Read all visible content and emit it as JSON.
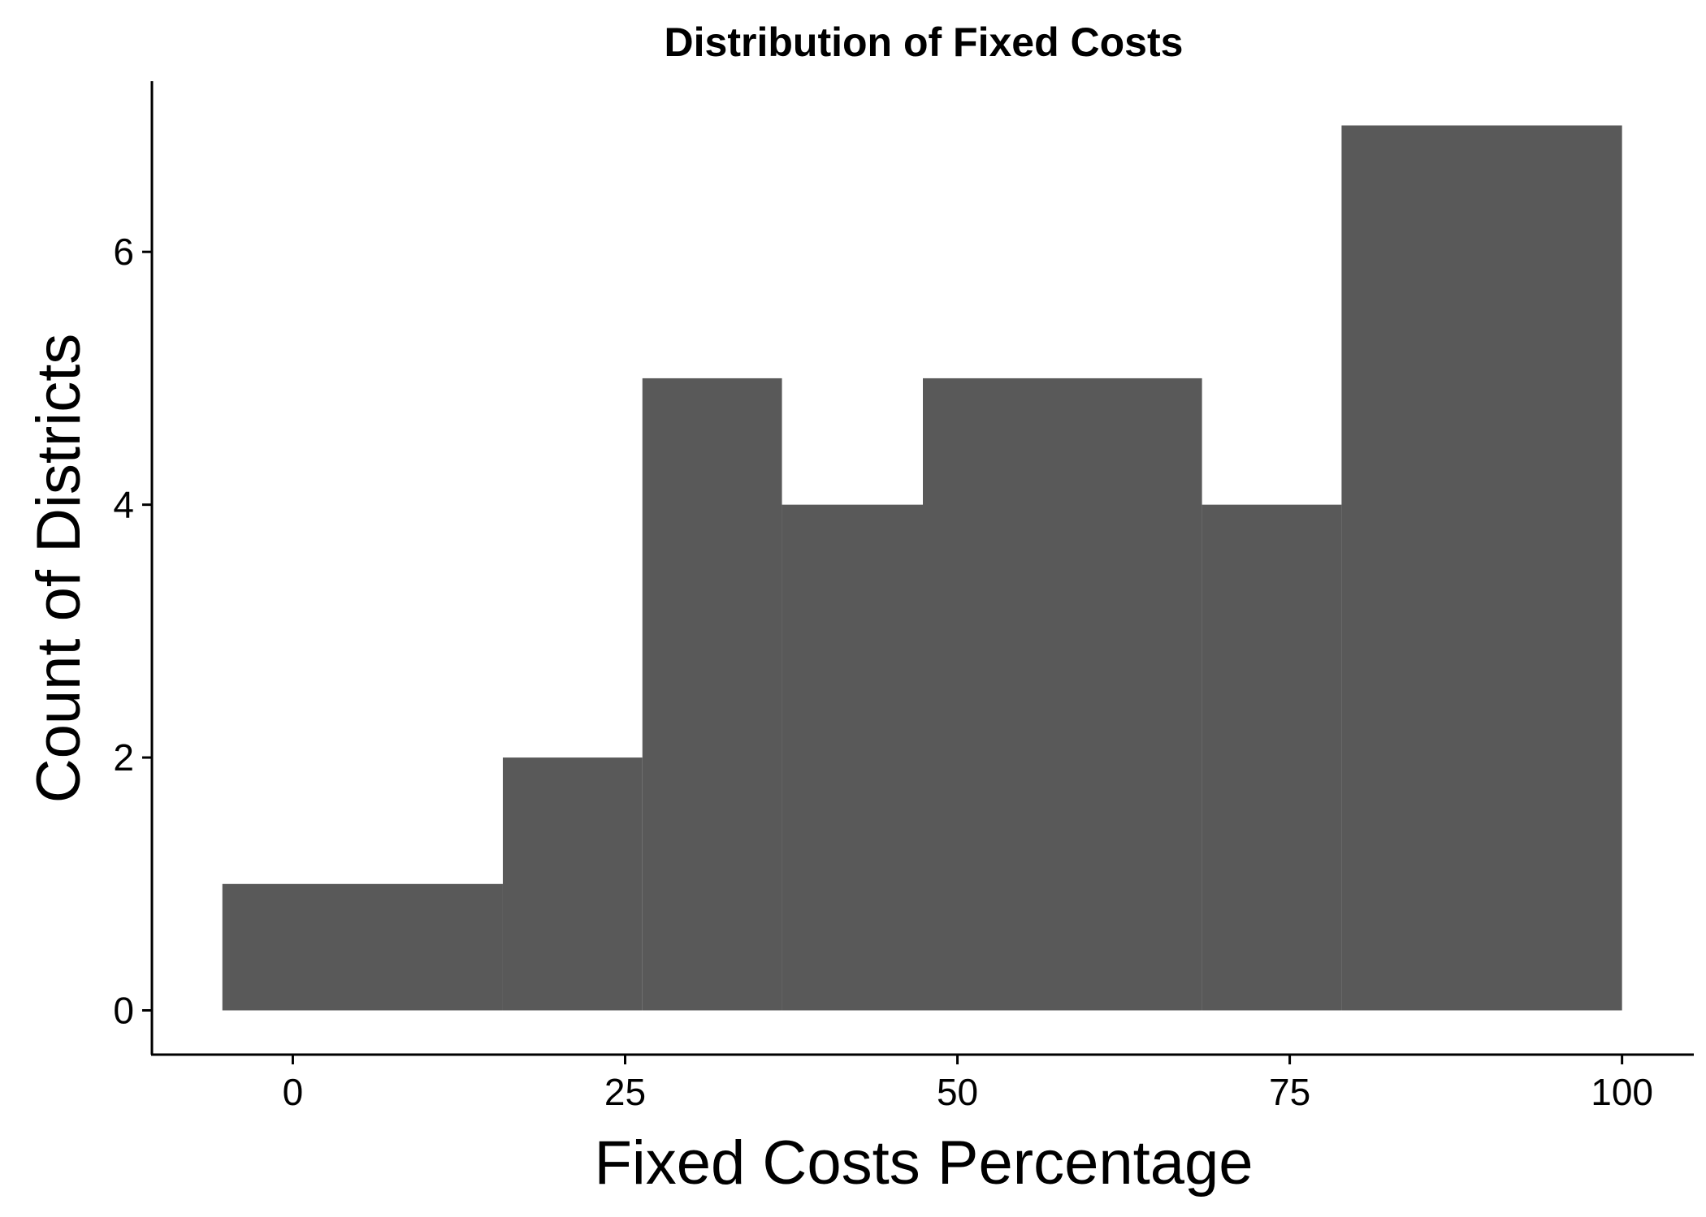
{
  "chart_data": {
    "type": "bar",
    "subtype": "histogram",
    "title": "Distribution of Fixed Costs",
    "xlabel": "Fixed Costs Percentage",
    "ylabel": "Count of Districts",
    "bins": [
      {
        "x0": -5.3,
        "x1": 15.8,
        "count": 1
      },
      {
        "x0": 15.8,
        "x1": 26.3,
        "count": 2
      },
      {
        "x0": 26.3,
        "x1": 36.8,
        "count": 5
      },
      {
        "x0": 36.8,
        "x1": 47.4,
        "count": 4
      },
      {
        "x0": 47.4,
        "x1": 68.4,
        "count": 5
      },
      {
        "x0": 68.4,
        "x1": 78.9,
        "count": 4
      },
      {
        "x0": 78.9,
        "x1": 100.0,
        "count": 7
      }
    ],
    "xticks": [
      0,
      25,
      50,
      75,
      100
    ],
    "yticks": [
      0,
      2,
      4,
      6
    ],
    "xlim": [
      -10.6,
      105.4
    ],
    "ylim": [
      -0.35,
      7.35
    ],
    "bar_color": "#595959",
    "grid": false,
    "legend": "none"
  }
}
